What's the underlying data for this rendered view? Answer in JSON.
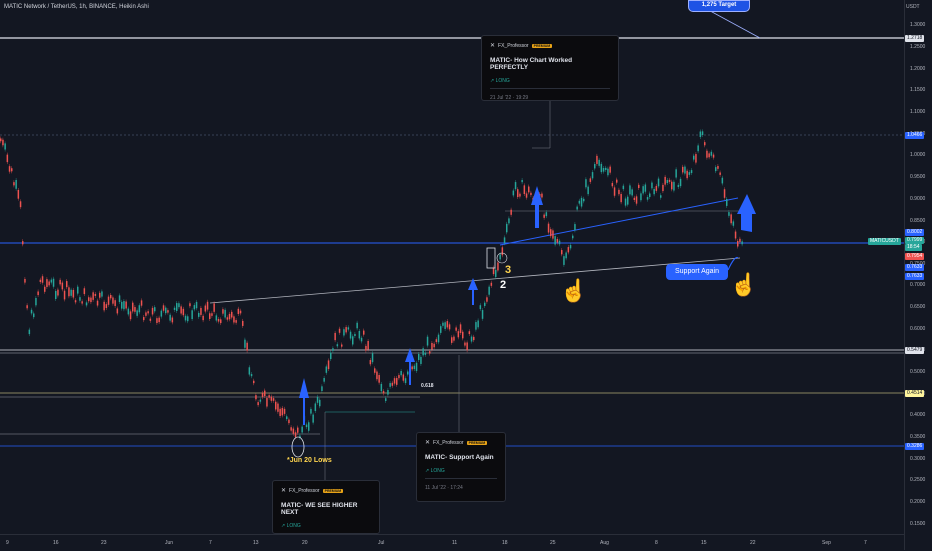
{
  "header": {
    "title": "MATIC Network / TetherUS, 1h, BINANCE, Heikin Ashi"
  },
  "price_axis": {
    "unit": "USDT",
    "ticks": [
      "1.3000",
      "1.2500",
      "1.2000",
      "1.1500",
      "1.1000",
      "1.0500",
      "1.0000",
      "0.9500",
      "0.9000",
      "0.8500",
      "0.8000",
      "0.7500",
      "0.7000",
      "0.6500",
      "0.6000",
      "0.5500",
      "0.5000",
      "0.4500",
      "0.4000",
      "0.3500",
      "0.3000",
      "0.2500",
      "0.2000",
      "0.1500"
    ],
    "tags": [
      {
        "text": "1.2718",
        "bg": "#e0e3eb",
        "fg": "#131722"
      },
      {
        "text": "1.0466",
        "bg": "#2962ff",
        "fg": "#ffffff"
      },
      {
        "text": "0.8002",
        "bg": "#2962ff",
        "fg": "#ffffff"
      },
      {
        "text": "0.7999",
        "bg": "#26a69a",
        "fg": "#ffffff"
      },
      {
        "text": "18:54",
        "bg": "#26a69a",
        "fg": "#ffffff"
      },
      {
        "text": "0.7954",
        "bg": "#ef5350",
        "fg": "#ffffff"
      },
      {
        "text": "0.7633",
        "bg": "#2962ff",
        "fg": "#ffffff"
      },
      {
        "text": "0.7633",
        "bg": "#2962ff",
        "fg": "#ffffff"
      },
      {
        "text": "0.5479",
        "bg": "#e0e3eb",
        "fg": "#131722"
      },
      {
        "text": "0.4514",
        "bg": "#fff59d",
        "fg": "#131722"
      },
      {
        "text": "0.3286",
        "bg": "#2962ff",
        "fg": "#ffffff"
      }
    ],
    "symbol_tag": "MATICUSDT"
  },
  "time_axis": {
    "ticks": [
      "9",
      "16",
      "23",
      "Jun",
      "7",
      "13",
      "20",
      "Jul",
      "11",
      "18",
      "25",
      "Aug",
      "8",
      "15",
      "22",
      "Sep",
      "7"
    ]
  },
  "cards": [
    {
      "author": "FX_Professor",
      "badge": "PREMIUM",
      "title": "MATIC- How Chart Worked PERFECTLY",
      "direction": "↗ LONG",
      "date": "21 Jul '22 · 19:29"
    },
    {
      "author": "FX_Professor",
      "badge": "PREMIUM",
      "title": "MATIC- Support Again",
      "direction": "↗ LONG",
      "date": "11 Jul '22 · 17:24"
    },
    {
      "author": "FX_Professor",
      "badge": "PREMIUM",
      "title": "MATIC- WE SEE HIGHER NEXT",
      "direction": "↗ LONG",
      "date": ""
    }
  ],
  "annotations": {
    "jun20": "*Jun 20 Lows",
    "fib": "0.618",
    "num3": "3",
    "num2": "2",
    "support": "Support Again",
    "target": "1,275 Target"
  },
  "colors": {
    "background": "#131722",
    "up": "#26a69a",
    "down": "#ef5350",
    "accent": "#2962ff"
  },
  "icons": {
    "hand": "pointing-hand-icon",
    "arrow": "up-arrow-icon"
  }
}
